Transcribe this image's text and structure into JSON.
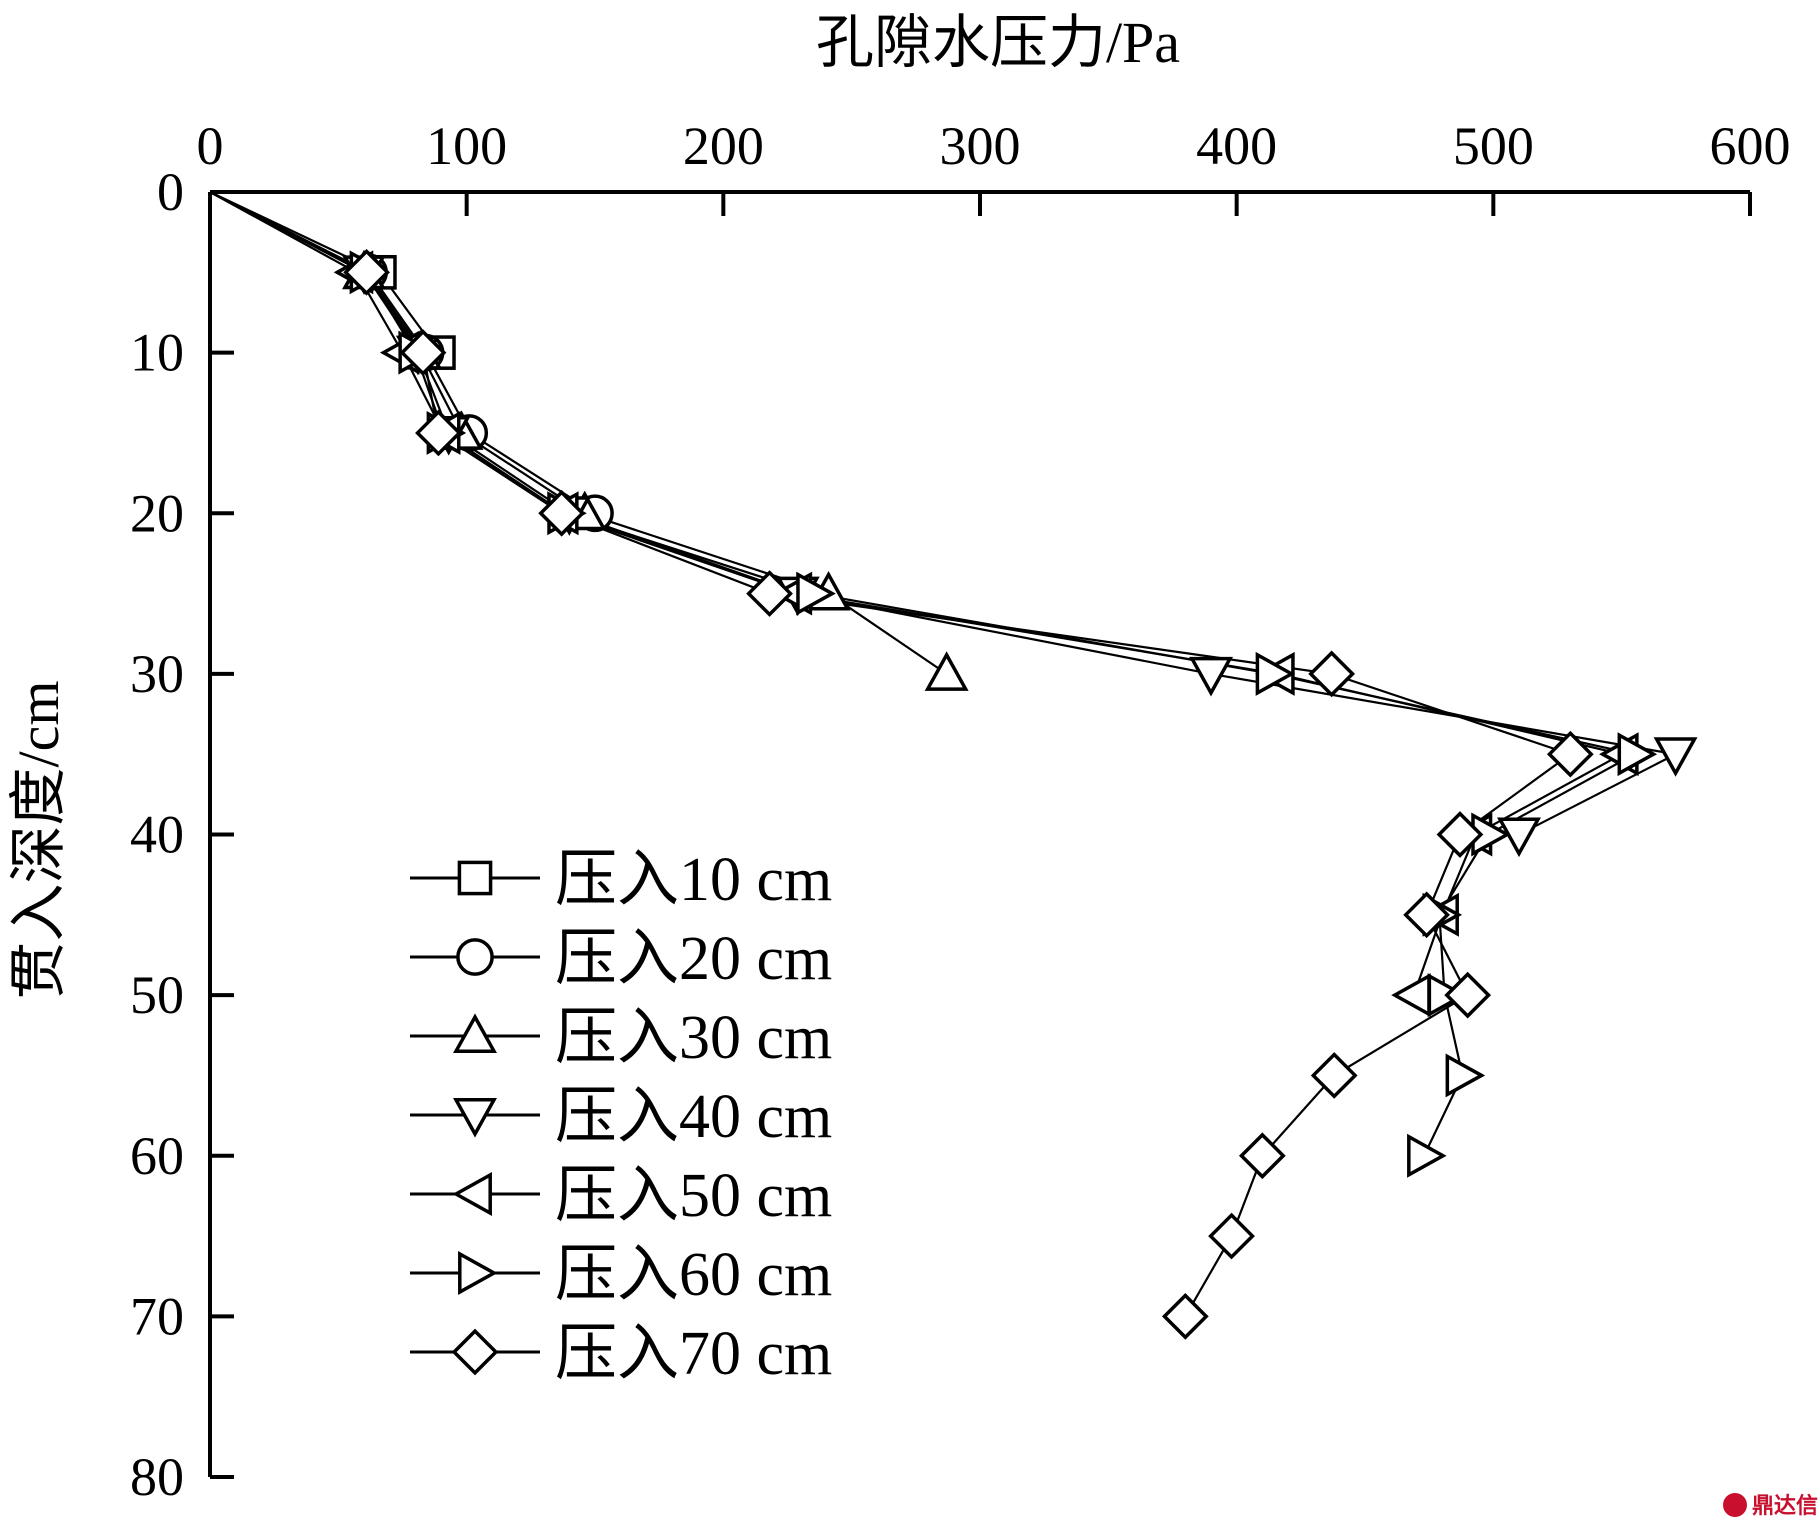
{
  "chart_data": {
    "type": "line",
    "xlabel": "孔隙水压力/Pa",
    "ylabel": "贯入深度/cm",
    "xlim": [
      0,
      600
    ],
    "ylim": [
      0,
      80
    ],
    "y_inverted": true,
    "x_axis_position": "top",
    "x_ticks": [
      0,
      100,
      200,
      300,
      400,
      500,
      600
    ],
    "y_ticks": [
      0,
      10,
      20,
      30,
      40,
      50,
      60,
      70,
      80
    ],
    "grid": false,
    "legend_position": "lower-left",
    "series": [
      {
        "name": "压入10 cm",
        "marker": "square",
        "points": [
          [
            0,
            0
          ],
          [
            66,
            5
          ],
          [
            89,
            10
          ]
        ]
      },
      {
        "name": "压入20 cm",
        "marker": "circle",
        "points": [
          [
            0,
            0
          ],
          [
            62,
            5
          ],
          [
            84,
            10
          ],
          [
            101,
            15
          ],
          [
            150,
            20
          ]
        ]
      },
      {
        "name": "压入30 cm",
        "marker": "triangle-up",
        "points": [
          [
            0,
            0
          ],
          [
            60,
            5
          ],
          [
            82,
            10
          ],
          [
            98,
            15
          ],
          [
            146,
            20
          ],
          [
            241,
            25
          ],
          [
            287,
            30
          ]
        ]
      },
      {
        "name": "压入40 cm",
        "marker": "triangle-down",
        "points": [
          [
            0,
            0
          ],
          [
            60,
            5
          ],
          [
            81,
            10
          ],
          [
            93,
            15
          ],
          [
            140,
            20
          ],
          [
            229,
            25
          ],
          [
            390,
            30
          ],
          [
            571,
            35
          ],
          [
            510,
            40
          ]
        ]
      },
      {
        "name": "压入50 cm",
        "marker": "triangle-left",
        "points": [
          [
            0,
            0
          ],
          [
            57,
            5
          ],
          [
            75,
            10
          ],
          [
            91,
            15
          ],
          [
            137,
            20
          ],
          [
            228,
            25
          ],
          [
            416,
            30
          ],
          [
            550,
            35
          ],
          [
            493,
            40
          ],
          [
            480,
            45
          ],
          [
            469,
            50
          ]
        ]
      },
      {
        "name": "压入60 cm",
        "marker": "triangle-right",
        "points": [
          [
            0,
            0
          ],
          [
            61,
            5
          ],
          [
            80,
            10
          ],
          [
            91,
            15
          ],
          [
            138,
            20
          ],
          [
            235,
            25
          ],
          [
            414,
            30
          ],
          [
            555,
            35
          ],
          [
            498,
            40
          ],
          [
            479,
            45
          ],
          [
            481,
            50
          ],
          [
            488,
            55
          ],
          [
            473,
            60
          ]
        ]
      },
      {
        "name": "压入70 cm",
        "marker": "diamond",
        "points": [
          [
            0,
            0
          ],
          [
            61,
            5
          ],
          [
            83,
            10
          ],
          [
            89,
            15
          ],
          [
            137,
            20
          ],
          [
            218,
            25
          ],
          [
            437,
            30
          ],
          [
            530,
            35
          ],
          [
            487,
            40
          ],
          [
            474,
            45
          ],
          [
            490,
            50
          ],
          [
            438,
            55
          ],
          [
            410,
            60
          ],
          [
            398,
            65
          ],
          [
            380,
            70
          ]
        ]
      }
    ]
  },
  "watermark": "鼎达信"
}
